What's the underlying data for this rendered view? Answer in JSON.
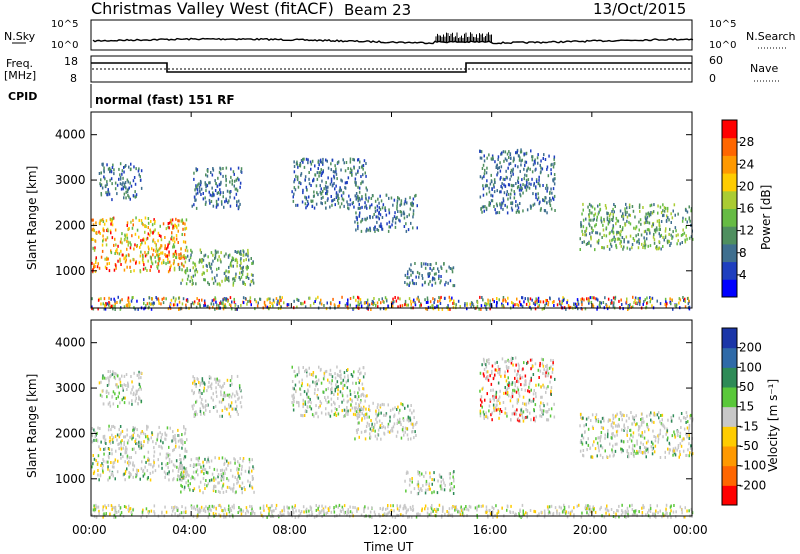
{
  "header": {
    "title": "Christmas Valley West (fitACF)",
    "beam": "Beam 23",
    "date": "13/Oct/2015"
  },
  "top_panels": {
    "nsky_label": "N.Sky",
    "nsky_ticks": [
      "10^5",
      "10^0"
    ],
    "nsearch_label": "N.Search",
    "nsearch_ticks": [
      "10^5",
      "10^0"
    ],
    "freq_label": "Freq.",
    "freq_unit": "[MHz]",
    "freq_ticks": [
      "18",
      "8"
    ],
    "nave_label": "Nave",
    "nave_ticks": [
      "60",
      "0"
    ],
    "cpid_label": "CPID",
    "cpid_text": "normal (fast) 151 RF"
  },
  "chart_data": [
    {
      "type": "heatmap",
      "name": "power",
      "ylabel": "Slant Range [km]",
      "yticks": [
        "1000",
        "2000",
        "3000",
        "4000"
      ],
      "xticks": [
        "00:00",
        "04:00",
        "08:00",
        "12:00",
        "16:00",
        "20:00",
        "00:00"
      ],
      "xlabel": "Time UT",
      "xlim_hours": [
        0,
        24
      ],
      "ylim_km": [
        180,
        4500
      ],
      "colorbar": {
        "label": "Power [dB]",
        "ticks": [
          "4",
          "8",
          "12",
          "16",
          "20",
          "24",
          "28"
        ],
        "colors": [
          "#0000ff",
          "#1f3fbf",
          "#3f6f8f",
          "#4f8f5f",
          "#66bb44",
          "#aacc33",
          "#ffcc00",
          "#ff9900",
          "#ff6600",
          "#ff0000"
        ]
      }
    },
    {
      "type": "heatmap",
      "name": "velocity",
      "ylabel": "Slant Range [km]",
      "yticks": [
        "1000",
        "2000",
        "3000",
        "4000"
      ],
      "xticks": [
        "00:00",
        "04:00",
        "08:00",
        "12:00",
        "16:00",
        "20:00",
        "00:00"
      ],
      "xlabel": "Time UT",
      "xlim_hours": [
        0,
        24
      ],
      "ylim_km": [
        180,
        4500
      ],
      "colorbar": {
        "label": "Velocity [m s⁻¹]",
        "ticks": [
          "200",
          "100",
          "50",
          "15",
          "-15",
          "-50",
          "-100",
          "-200"
        ],
        "colors": [
          "#1b36a8",
          "#2f6aa8",
          "#2e8b57",
          "#5ac83a",
          "#c8c8c8",
          "#ffcc00",
          "#ff9900",
          "#ff6600",
          "#ff0000"
        ]
      }
    }
  ],
  "scatter_regions": [
    {
      "t0": 0.0,
      "t1": 3.8,
      "r0": 1000,
      "r1": 2200,
      "kind": "strong"
    },
    {
      "t0": 3.5,
      "t1": 6.5,
      "r0": 700,
      "r1": 1500,
      "kind": "moderate"
    },
    {
      "t0": 0.3,
      "t1": 2.0,
      "r0": 2600,
      "r1": 3400,
      "kind": "weak"
    },
    {
      "t0": 4.0,
      "t1": 6.0,
      "r0": 2400,
      "r1": 3300,
      "kind": "weak"
    },
    {
      "t0": 8.0,
      "t1": 11.0,
      "r0": 2400,
      "r1": 3500,
      "kind": "weak"
    },
    {
      "t0": 10.5,
      "t1": 13.0,
      "r0": 1900,
      "r1": 2700,
      "kind": "weak"
    },
    {
      "t0": 12.5,
      "t1": 14.5,
      "r0": 700,
      "r1": 1200,
      "kind": "weak"
    },
    {
      "t0": 15.5,
      "t1": 18.5,
      "r0": 2300,
      "r1": 3700,
      "kind": "weak"
    },
    {
      "t0": 19.5,
      "t1": 24.0,
      "r0": 1500,
      "r1": 2500,
      "kind": "moderate"
    },
    {
      "t0": 0.0,
      "t1": 24.0,
      "r0": 180,
      "r1": 450,
      "kind": "ground"
    }
  ]
}
